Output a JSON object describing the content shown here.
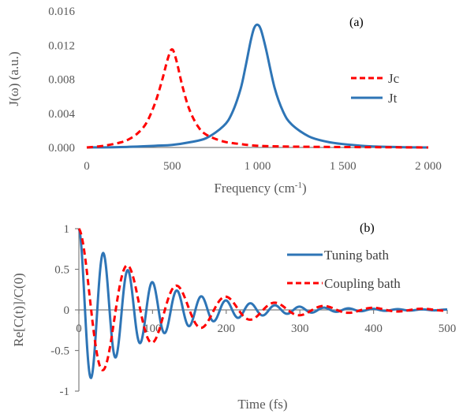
{
  "chart_data": [
    {
      "type": "line",
      "panel_label": "(a)",
      "xlabel": "Frequency (cm",
      "xlabel_sup": "-1",
      "xlabel_tail": ")",
      "ylabel": "J(ω) (a.u.)",
      "xlim": [
        0,
        2000
      ],
      "ylim": [
        0,
        0.016
      ],
      "xticks": [
        0,
        500,
        1000,
        1500,
        2000
      ],
      "xtick_labels": [
        "0",
        "500",
        "1 000",
        "1 500",
        "2 000"
      ],
      "yticks": [
        0,
        0.004,
        0.008,
        0.012,
        0.016
      ],
      "ytick_labels": [
        "0.000",
        "0.004",
        "0.008",
        "0.012",
        "0.016"
      ],
      "legend_position": "center-right",
      "series": [
        {
          "name": "Jc",
          "color": "#ff0000",
          "dash": "dashed",
          "x": [
            0,
            100,
            200,
            250,
            300,
            350,
            400,
            440,
            470,
            490,
            500,
            510,
            530,
            560,
            600,
            650,
            700,
            800,
            900,
            1000,
            1200,
            1500,
            2000
          ],
          "y": [
            0,
            0.0002,
            0.0006,
            0.001,
            0.0017,
            0.0029,
            0.0052,
            0.0078,
            0.0101,
            0.0113,
            0.0115,
            0.0112,
            0.0098,
            0.0072,
            0.0045,
            0.0025,
            0.0015,
            0.0007,
            0.0004,
            0.0002,
            0.0001,
            5e-05,
            0
          ]
        },
        {
          "name": "Jt",
          "color": "#2e75b6",
          "dash": "solid",
          "x": [
            0,
            200,
            400,
            500,
            600,
            700,
            800,
            850,
            900,
            930,
            960,
            980,
            1000,
            1020,
            1050,
            1100,
            1150,
            1200,
            1300,
            1400,
            1500,
            1700,
            2000
          ],
          "y": [
            0,
            5e-05,
            0.0002,
            0.0003,
            0.0006,
            0.0011,
            0.0025,
            0.004,
            0.0068,
            0.0095,
            0.0125,
            0.014,
            0.0144,
            0.0138,
            0.0115,
            0.007,
            0.0042,
            0.0027,
            0.0013,
            0.0007,
            0.0004,
            0.0001,
            0
          ]
        }
      ]
    },
    {
      "type": "line",
      "panel_label": "(b)",
      "xlabel": "Time (fs)",
      "ylabel": "Re[C(t)]/C(0)",
      "xlim": [
        0,
        500
      ],
      "ylim": [
        -1,
        1
      ],
      "xticks": [
        0,
        100,
        200,
        300,
        400,
        500
      ],
      "xtick_labels": [
        "0",
        "100",
        "200",
        "300",
        "400",
        "500"
      ],
      "yticks": [
        -1,
        -0.5,
        0,
        0.5,
        1
      ],
      "ytick_labels": [
        "-1",
        "-0.5",
        "0",
        "0.5",
        "1"
      ],
      "legend_position": "top-right",
      "series": [
        {
          "name": "Tuning bath",
          "color": "#2e75b6",
          "dash": "solid",
          "model": {
            "period_fs": 33.3,
            "decay_fs": 93
          }
        },
        {
          "name": "Coupling bath",
          "color": "#ff0000",
          "dash": "dashed",
          "model": {
            "period_fs": 66.7,
            "decay_fs": 110
          }
        }
      ]
    }
  ]
}
